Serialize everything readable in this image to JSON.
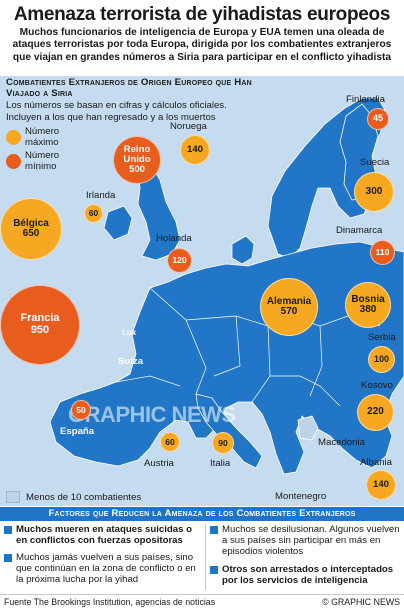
{
  "header": {
    "title": "Amenaza terrorista de yihadistas europeos",
    "intro": "Muchos funcionarios de inteligencia de Europa y EUA temen una oleada de ataques terroristas por toda Europa, dirigida por los combatientes extranjeros que viajan en grandes números a Siria para participar en el conflicto yihadista"
  },
  "map": {
    "subtitle": "Combatientes Extranjeros de Origen Europeo que Han Viajado a Siria",
    "note": "Los números se basan en cifras y cálculos oficiales. Incluyen a los que han regresado y a los muertos",
    "legend": {
      "max": "Número máximo",
      "min": "Número mínimo"
    },
    "small_label": "Menos de 10 combatientes",
    "watermark": "GRAPHIC NEWS",
    "colors": {
      "land": "#2176c8",
      "sea": "#c5dcf0",
      "max": "#f7a823",
      "min": "#e85d1e",
      "highlight": "#bcd3ea"
    },
    "countries": [
      {
        "id": "finlandia",
        "name": "Finlandia",
        "value": "45",
        "kind": "min"
      },
      {
        "id": "noruega",
        "name": "Noruega",
        "value": "140",
        "kind": "max"
      },
      {
        "id": "reino-unido",
        "name": "Reino Unido",
        "value": "500",
        "kind": "min"
      },
      {
        "id": "suecia",
        "name": "Suecia",
        "value": "300",
        "kind": "max"
      },
      {
        "id": "irlanda",
        "name": "Irlanda",
        "value": "60",
        "kind": "max"
      },
      {
        "id": "belgica",
        "name": "Bélgica",
        "value": "650",
        "kind": "max"
      },
      {
        "id": "dinamarca",
        "name": "Dinamarca",
        "value": "110",
        "kind": "min"
      },
      {
        "id": "holanda",
        "name": "Holanda",
        "value": "120",
        "kind": "min"
      },
      {
        "id": "francia",
        "name": "Francia",
        "value": "950",
        "kind": "min"
      },
      {
        "id": "alemania",
        "name": "Alemania",
        "value": "570",
        "kind": "max"
      },
      {
        "id": "bosnia",
        "name": "Bosnia",
        "value": "380",
        "kind": "max"
      },
      {
        "id": "serbia",
        "name": "Serbia",
        "value": "100",
        "kind": "max"
      },
      {
        "id": "kosovo",
        "name": "Kosovo",
        "value": "220",
        "kind": "max"
      },
      {
        "id": "espana",
        "name": "España",
        "value": "50",
        "kind": "min"
      },
      {
        "id": "austria",
        "name": "Austria",
        "value": "60",
        "kind": "max"
      },
      {
        "id": "italia",
        "name": "Italia",
        "value": "90",
        "kind": "max"
      },
      {
        "id": "albania",
        "name": "Albania",
        "value": "140",
        "kind": "max"
      }
    ],
    "plain_labels": {
      "lux": "Lux",
      "suiza": "Suiza",
      "macedonia": "Macedonia",
      "montenegro": "Montenegro"
    }
  },
  "factors": {
    "heading": "Factores que Reducen la Amenaza de los Combatientes Extranjeros",
    "items": [
      "Muchos mueren en ataques suicidas o en conflictos con fuerzas opositoras",
      "Muchos se desilusionan. Algunos vuelven a sus países sin participar en más en episodios violentos",
      "Muchos jamás vuelven a sus países, sino que continúan en la zona de conflicto o en la próxima lucha por la yihad",
      "Otros son arrestados o interceptados por los servicios de inteligencia"
    ]
  },
  "footer": {
    "source": "Fuente The Brookings Institution, agencias de noticias",
    "brand": "© GRAPHIC NEWS"
  }
}
